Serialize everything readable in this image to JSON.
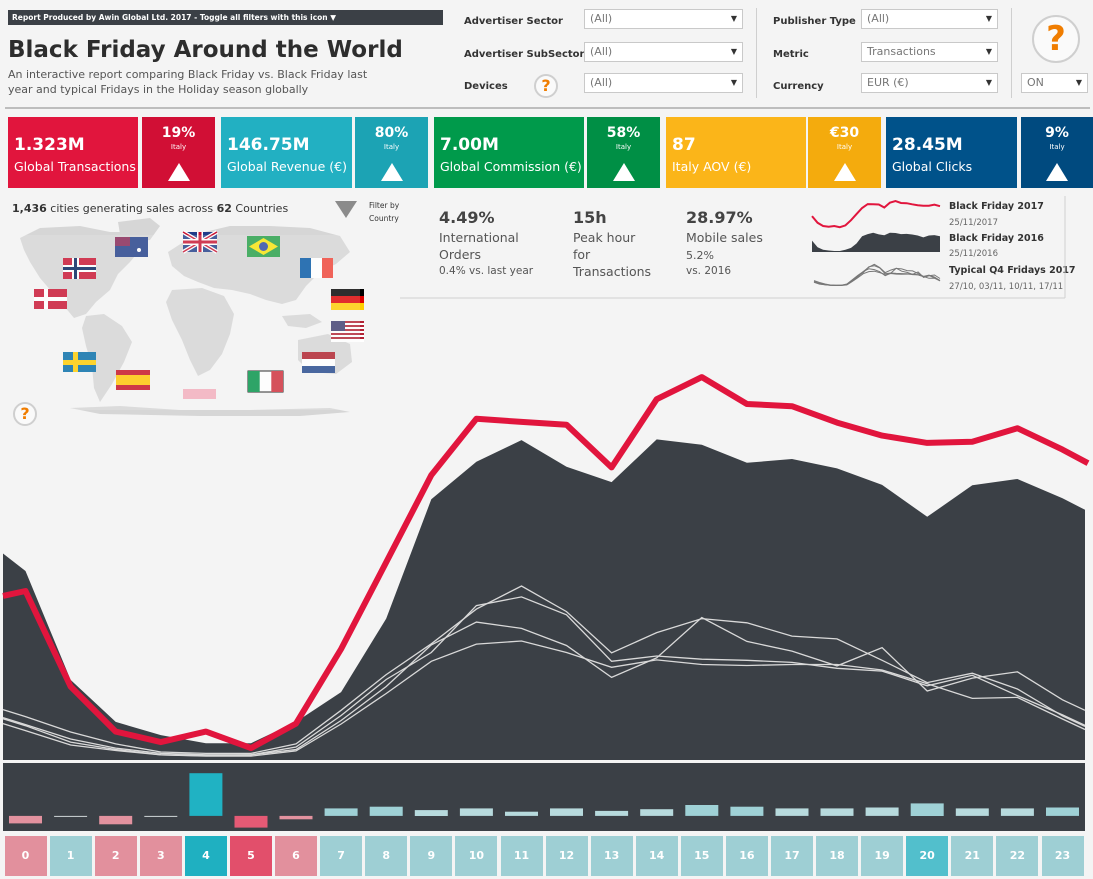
{
  "banner": "Report Produced by Awin Global Ltd.  2017  - Toggle all filters with this icon ▼",
  "title": "Black Friday Around the World",
  "subtitle": "An interactive report comparing Black Friday vs. Black Friday last year and typical Fridays in the Holiday season globally",
  "filters": {
    "advertiser_sector": {
      "label": "Advertiser Sector",
      "value": "(All)"
    },
    "advertiser_subsector": {
      "label": "Advertiser SubSector",
      "value": "(All)"
    },
    "devices": {
      "label": "Devices",
      "value": "(All)"
    },
    "publisher_type": {
      "label": "Publisher Type",
      "value": "(All)"
    },
    "metric": {
      "label": "Metric",
      "value": "Transactions"
    },
    "currency": {
      "label": "Currency",
      "value": "EUR (€)"
    },
    "toggle": {
      "value": "ON"
    }
  },
  "help_glyph": "?",
  "kpis": [
    {
      "value": "1.323M",
      "label": "Global Transactions",
      "pct": "19%",
      "country": "Italy",
      "color": "#e1153d",
      "dark": "#d10f35"
    },
    {
      "value": "146.75M",
      "label": "Global Revenue (€)",
      "pct": "80%",
      "country": "Italy",
      "color": "#22b0c2",
      "dark": "#1ca3b4"
    },
    {
      "value": "7.00M",
      "label": "Global Commission (€)",
      "pct": "58%",
      "country": "Italy",
      "color": "#009a4b",
      "dark": "#008f45"
    },
    {
      "value": "87",
      "label": "Italy AOV (€)",
      "pct": "€30",
      "country": "Italy",
      "color": "#fbb519",
      "dark": "#f4ab0d"
    },
    {
      "value": "28.45M",
      "label": "Global Clicks",
      "pct": "9%",
      "country": "Italy",
      "color": "#00528a",
      "dark": "#004a7f"
    }
  ],
  "cities": {
    "count": "1,436",
    "mid": " cities generating sales across ",
    "countries": "62",
    "end": " Countries"
  },
  "filter_by": "Filter by Country",
  "stats": [
    {
      "big": "4.49%",
      "label": "International Orders",
      "sub": "0.4% vs. last year"
    },
    {
      "big": "15h",
      "label": "Peak hour for Transactions",
      "sub": ""
    },
    {
      "big": "28.97%",
      "label": "Mobile sales",
      "sub": "5.2%",
      "sub2": "vs. 2016"
    }
  ],
  "legend": [
    {
      "title": "Black Friday 2017",
      "date": "25/11/2017"
    },
    {
      "title": "Black Friday 2016",
      "date": "25/11/2016"
    },
    {
      "title": "Typical Q4 Fridays 2017",
      "date": "27/10, 03/11, 10/11, 17/11"
    }
  ],
  "colors": {
    "bf2017": "#e1153d",
    "bf2016": "#3b4046",
    "fridays": "#d9d9d9",
    "bg": "#f4f4f4"
  },
  "chart_data": {
    "type": "area",
    "x": [
      0,
      1,
      2,
      3,
      4,
      5,
      6,
      7,
      8,
      9,
      10,
      11,
      12,
      13,
      14,
      15,
      16,
      17,
      18,
      19,
      20,
      21,
      22,
      23
    ],
    "ylim": [
      0,
      100
    ],
    "series": [
      {
        "name": "Black Friday 2017",
        "kind": "line",
        "values": [
          48.3,
          21,
          8.1,
          5.1,
          8.1,
          3.4,
          10.4,
          31.7,
          56.5,
          81.4,
          97.5,
          96.6,
          95.8,
          83.6,
          103.1,
          109.4,
          101.7,
          101.1,
          96.4,
          92.7,
          90.6,
          90.9,
          94.8,
          88.7
        ],
        "markers": [
          {
            "x": 0.1,
            "y": 46.9
          },
          {
            "x": 0.5,
            "y": 34.2
          },
          {
            "x": 22.5,
            "y": 92.6
          },
          {
            "x": 23.5,
            "y": 84.8
          }
        ]
      },
      {
        "name": "Black Friday 2016",
        "kind": "area",
        "values": [
          54,
          22.9,
          10.9,
          7.1,
          4.8,
          4.8,
          10.9,
          19.4,
          40.4,
          74.5,
          85.2,
          91.4,
          83.8,
          79.4,
          91.6,
          90.1,
          84.9,
          86,
          83.3,
          78.6,
          69.5,
          78.5,
          80.3,
          74.8
        ],
        "markers": [
          {
            "x": 23.5,
            "y": 71.5
          }
        ]
      },
      {
        "name": "Typical Q4 Fridays 2017",
        "kind": "lines",
        "values": [
          [
            12.4,
            8,
            4.6,
            2.3,
            1.9,
            1.9,
            4.6,
            14.2,
            24.4,
            33.2,
            43.1,
            49.7,
            42.4,
            30.6,
            36.4,
            40.4,
            39.2,
            35.4,
            34.6,
            28.5,
            22.1,
            24.8,
            20.3,
            12.6
          ],
          [
            9.8,
            5.1,
            3,
            1.5,
            1.1,
            1.1,
            2.6,
            10.3,
            19,
            28.2,
            33.1,
            34,
            30.7,
            26.5,
            28.6,
            27.3,
            27,
            27.3,
            27.3,
            25.7,
            21.8,
            17.6,
            17.9,
            11.7
          ],
          [
            8.4,
            4.3,
            2.7,
            1.5,
            1.2,
            1.5,
            3,
            11.3,
            21,
            32.9,
            39.4,
            37.6,
            32.7,
            23.6,
            29.2,
            40.7,
            33.9,
            31.1,
            26.9,
            32.1,
            19.7,
            23.4,
            25.2,
            17.2
          ],
          [
            10.1,
            6,
            3.4,
            1.9,
            1.5,
            1.5,
            3.7,
            12.7,
            23,
            30.7,
            44.1,
            46.6,
            41.5,
            28.2,
            29.7,
            28.8,
            28.5,
            27.9,
            26.2,
            25.4,
            21.2,
            24.2,
            18.4,
            12.9
          ]
        ]
      }
    ]
  },
  "hour_bars": {
    "x": [
      0,
      1,
      2,
      3,
      4,
      5,
      6,
      7,
      8,
      9,
      10,
      11,
      12,
      13,
      14,
      15,
      16,
      17,
      18,
      19,
      20,
      21,
      22,
      23
    ],
    "values": [
      -9,
      -1,
      -10,
      -1,
      51,
      -14,
      -4,
      9,
      11,
      7,
      9,
      5,
      9,
      6,
      8,
      13,
      11,
      9,
      9,
      10,
      15,
      9,
      9,
      10
    ],
    "ylim": [
      -18,
      62
    ],
    "colors": [
      "#e2929f",
      "#cfd6d8",
      "#e2929f",
      "#cfd6d8",
      "#20b2c3",
      "#e55a75",
      "#e2929f",
      "#9fd1d6",
      "#9fd1d6",
      "#b7dadd",
      "#b7dadd",
      "#b7dadd",
      "#b7dadd",
      "#b7dadd",
      "#b7dadd",
      "#9fd1d6",
      "#9fd1d6",
      "#b7dadd",
      "#b7dadd",
      "#b7dadd",
      "#9fd1d6",
      "#b7dadd",
      "#b7dadd",
      "#9fd1d6"
    ]
  },
  "hours": {
    "labels": [
      "0",
      "1",
      "2",
      "3",
      "4",
      "5",
      "6",
      "7",
      "8",
      "9",
      "10",
      "11",
      "12",
      "13",
      "14",
      "15",
      "16",
      "17",
      "18",
      "19",
      "20",
      "21",
      "22",
      "23"
    ],
    "colors": [
      "#e2909d",
      "#9ecfd4",
      "#e2909d",
      "#e2909d",
      "#1fb0c1",
      "#e24f6b",
      "#e2909d",
      "#9ecfd4",
      "#9ecfd4",
      "#9ecfd4",
      "#9ecfd4",
      "#9ecfd4",
      "#9ecfd4",
      "#9ecfd4",
      "#9ecfd4",
      "#9ecfd4",
      "#9ecfd4",
      "#9ecfd4",
      "#9ecfd4",
      "#9ecfd4",
      "#52bfcc",
      "#9ecfd4",
      "#9ecfd4",
      "#9ecfd4"
    ]
  }
}
